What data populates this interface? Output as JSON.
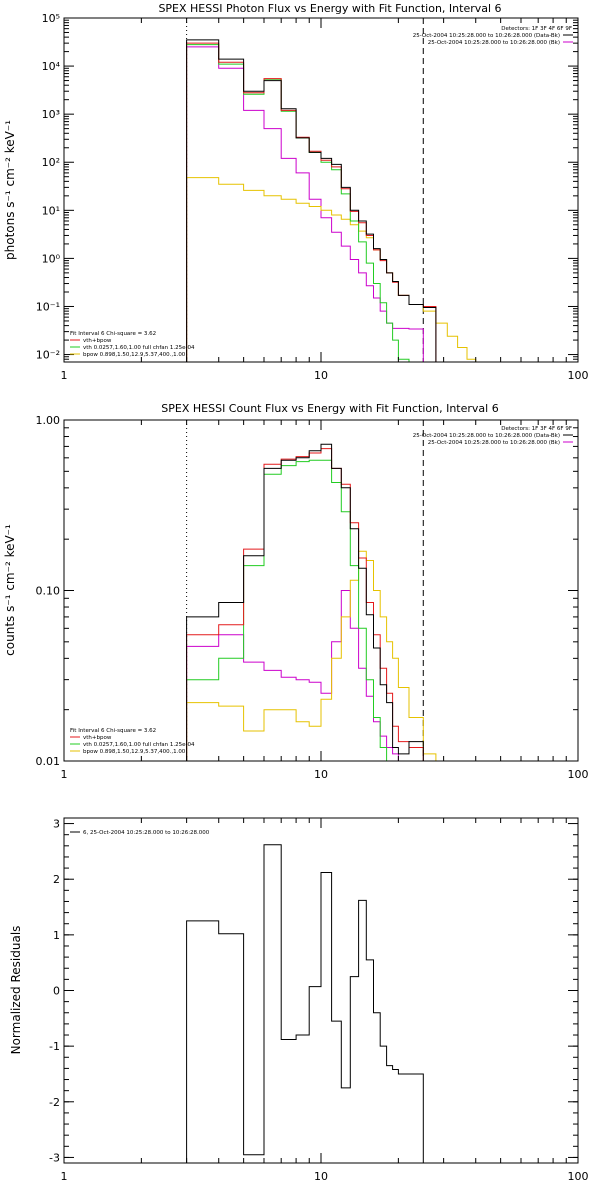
{
  "colors": {
    "total": "#000000",
    "fit": "#e41a1c",
    "vth": "#22cc22",
    "bpow": "#e6c200",
    "bk": "#cc00cc"
  },
  "chart_data": [
    {
      "type": "line",
      "title": "SPEX HESSI Photon Flux vs Energy with Fit Function, Interval 6",
      "xlabel": "",
      "ylabel": "photons s⁻¹ cm⁻² keV⁻¹",
      "xscale": "log",
      "yscale": "log",
      "xlim": [
        1,
        100
      ],
      "ylim": [
        0.007,
        100000
      ],
      "x_ticks": [
        {
          "v": 1,
          "label": "1"
        },
        {
          "v": 10,
          "label": "10"
        },
        {
          "v": 100,
          "label": "100"
        }
      ],
      "y_ticks": [
        {
          "v": 0.01,
          "label": "10⁻²"
        },
        {
          "v": 0.1,
          "label": "10⁻¹"
        },
        {
          "v": 1,
          "label": "10⁰"
        },
        {
          "v": 10,
          "label": "10¹"
        },
        {
          "v": 100,
          "label": "10²"
        },
        {
          "v": 1000,
          "label": "10³"
        },
        {
          "v": 10000,
          "label": "10⁴"
        },
        {
          "v": 100000,
          "label": "10⁵"
        }
      ],
      "vlines": [
        {
          "x": 3,
          "style": "dotted"
        },
        {
          "x": 25,
          "style": "dashed"
        }
      ],
      "header_lines": [
        "Detectors: 1F 3F 4F 6F 9F",
        "25-Oct-2004 10:25:28.000 to 10:26:28.000 (Data-Bk)",
        "25-Oct-2004 10:25:28.000 to 10:26:28.000 (Bk)"
      ],
      "legend": {
        "title": "Fit Interval  6   Chi-square = 3.62",
        "entries": [
          "vth+bpow",
          "vth 0.0257,1.60,1.00  full chfan 1.25e-04",
          "bpow 0.898,1.50,12.9,5.37,400.,1.00"
        ]
      },
      "edges": [
        3,
        4,
        5,
        6,
        7,
        8,
        9,
        10,
        11,
        12,
        13,
        14,
        15,
        16,
        17,
        18,
        19,
        20,
        22,
        25,
        28,
        31,
        34,
        37,
        40
      ],
      "series": [
        {
          "name": "Data-Bk",
          "colorKey": "total",
          "values": [
            35000,
            14000,
            3000,
            5000,
            1300,
            320,
            160,
            120,
            90,
            30,
            10,
            6,
            3.2,
            1.6,
            0.95,
            0.5,
            0.33,
            0.17,
            0.11,
            0.095
          ]
        },
        {
          "name": "vth+bpow",
          "colorKey": "fit",
          "values": [
            30000,
            12000,
            2800,
            5500,
            1200,
            330,
            170,
            110,
            80,
            28,
            9.5,
            5.5,
            3.0,
            1.5,
            0.9,
            0.5,
            0.32,
            0.17,
            0.11,
            0.1
          ]
        },
        {
          "name": "vth",
          "colorKey": "vth",
          "values": [
            28000,
            11000,
            2600,
            5300,
            1150,
            320,
            160,
            100,
            70,
            22,
            6,
            2.2,
            0.8,
            0.3,
            0.12,
            0.045,
            0.02,
            0.008
          ]
        },
        {
          "name": "bpow",
          "colorKey": "bpow",
          "values": [
            48,
            35,
            26,
            20,
            17,
            14,
            12,
            10,
            8,
            6.5,
            5,
            3.7,
            2.7,
            1.5,
            0.95,
            0.5,
            0.33,
            0.17,
            0.11,
            0.08,
            0.045,
            0.024,
            0.014,
            0.008
          ]
        },
        {
          "name": "Bk",
          "colorKey": "bk",
          "values": [
            25000,
            9000,
            1200,
            500,
            120,
            60,
            17,
            7,
            3.5,
            1.8,
            0.95,
            0.5,
            0.27,
            0.15,
            0.08,
            0.045,
            0.035,
            0.035,
            0.034
          ]
        }
      ]
    },
    {
      "type": "line",
      "title": "SPEX HESSI Count Flux vs Energy with Fit Function, Interval 6",
      "xlabel": "",
      "ylabel": "counts s⁻¹ cm⁻² keV⁻¹",
      "xscale": "log",
      "yscale": "log",
      "xlim": [
        1,
        100
      ],
      "ylim": [
        0.01,
        1.0
      ],
      "x_ticks": [
        {
          "v": 1,
          "label": "1"
        },
        {
          "v": 10,
          "label": "10"
        },
        {
          "v": 100,
          "label": "100"
        }
      ],
      "y_ticks": [
        {
          "v": 0.01,
          "label": "0.01"
        },
        {
          "v": 0.1,
          "label": "0.10"
        },
        {
          "v": 1,
          "label": "1.00"
        }
      ],
      "vlines": [
        {
          "x": 3,
          "style": "dotted"
        },
        {
          "x": 25,
          "style": "dashed"
        }
      ],
      "header_lines": [
        "Detectors: 1F 3F 4F 6F 9F",
        "25-Oct-2004 10:25:28.000 to 10:26:28.000 (Data-Bk)",
        "25-Oct-2004 10:25:28.000 to 10:26:28.000 (Bk)"
      ],
      "legend": {
        "title": "Fit Interval  6   Chi-square = 3.62",
        "entries": [
          "vth+bpow",
          "vth 0.0257,1.60,1.00  full chfan 1.25e-04",
          "bpow 0.898,1.50,12.9,5.37,400.,1.00"
        ]
      },
      "edges": [
        3,
        4,
        5,
        6,
        7,
        8,
        9,
        10,
        11,
        12,
        13,
        14,
        15,
        16,
        17,
        18,
        19,
        20,
        22,
        25,
        28
      ],
      "series": [
        {
          "name": "Data-Bk",
          "colorKey": "total",
          "values": [
            0.07,
            0.085,
            0.16,
            0.52,
            0.58,
            0.6,
            0.66,
            0.72,
            0.52,
            0.4,
            0.23,
            0.135,
            0.072,
            0.046,
            0.028,
            0.022,
            0.012,
            0.011,
            0.013
          ]
        },
        {
          "name": "vth+bpow",
          "colorKey": "fit",
          "values": [
            0.055,
            0.063,
            0.175,
            0.55,
            0.59,
            0.61,
            0.64,
            0.68,
            0.52,
            0.42,
            0.25,
            0.155,
            0.085,
            0.055,
            0.035,
            0.025,
            0.016,
            0.013,
            0.012
          ]
        },
        {
          "name": "vth",
          "colorKey": "vth",
          "values": [
            0.03,
            0.04,
            0.14,
            0.48,
            0.54,
            0.57,
            0.58,
            0.58,
            0.43,
            0.29,
            0.14,
            0.06,
            0.03,
            0.018,
            0.012,
            0.01
          ]
        },
        {
          "name": "bpow",
          "colorKey": "bpow",
          "values": [
            0.022,
            0.021,
            0.015,
            0.02,
            0.02,
            0.017,
            0.016,
            0.023,
            0.04,
            0.07,
            0.115,
            0.17,
            0.15,
            0.1,
            0.07,
            0.05,
            0.04,
            0.027,
            0.018,
            0.011
          ]
        },
        {
          "name": "Bk",
          "colorKey": "bk",
          "values": [
            0.047,
            0.055,
            0.038,
            0.034,
            0.031,
            0.03,
            0.029,
            0.025,
            0.05,
            0.1,
            0.06,
            0.035,
            0.024,
            0.017,
            0.014,
            0.012,
            0.011,
            0.01
          ]
        }
      ]
    },
    {
      "type": "line",
      "title": "",
      "xlabel": "",
      "ylabel": "Normalized Residuals",
      "xscale": "log",
      "yscale": "linear",
      "xlim": [
        1,
        100
      ],
      "ylim": [
        -3.1,
        3.1
      ],
      "x_ticks": [
        {
          "v": 1,
          "label": "1"
        },
        {
          "v": 10,
          "label": "10"
        },
        {
          "v": 100,
          "label": "100"
        }
      ],
      "y_ticks": [
        {
          "v": -3,
          "label": "-3"
        },
        {
          "v": -2,
          "label": "-2"
        },
        {
          "v": -1,
          "label": "-1"
        },
        {
          "v": 0,
          "label": "0"
        },
        {
          "v": 1,
          "label": "1"
        },
        {
          "v": 2,
          "label": "2"
        },
        {
          "v": 3,
          "label": "3"
        }
      ],
      "legend": {
        "title": "",
        "entries": [
          "6, 25-Oct-2004 10:25:28.000 to 10:26:28.000"
        ]
      },
      "edges": [
        3,
        4,
        5,
        6,
        7,
        8,
        9,
        10,
        11,
        12,
        13,
        14,
        15,
        16,
        17,
        18,
        19,
        20,
        22,
        25
      ],
      "series": [
        {
          "name": "6, 25-Oct-2004 10:25:28.000 to 10:26:28.000",
          "colorKey": "total",
          "values": [
            1.25,
            1.02,
            -2.95,
            2.62,
            -0.88,
            -0.8,
            0.07,
            2.12,
            -0.55,
            -1.75,
            0.25,
            1.62,
            0.55,
            -0.4,
            -1.0,
            -1.35,
            -1.42,
            -1.5,
            -1.5
          ]
        }
      ]
    }
  ]
}
